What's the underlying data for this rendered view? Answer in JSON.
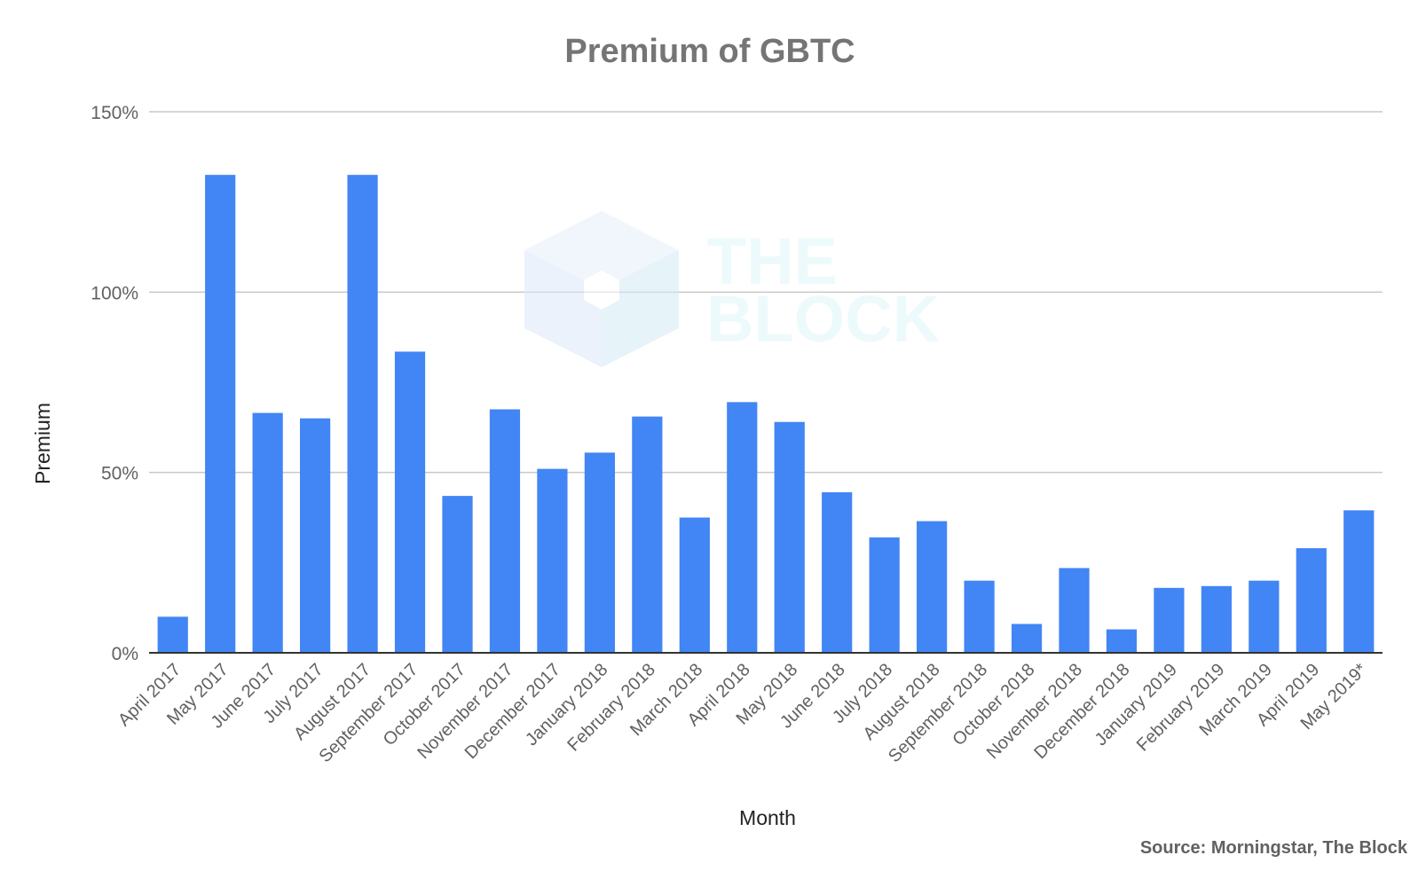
{
  "chart_data": {
    "type": "bar",
    "title": "Premium of GBTC",
    "xlabel": "Month",
    "ylabel": "Premium",
    "ylim": [
      0,
      150
    ],
    "yticks": [
      "0%",
      "50%",
      "100%",
      "150%"
    ],
    "y_unit": "%",
    "grid": true,
    "bar_color": "#4285f4",
    "categories": [
      "April 2017",
      "May 2017",
      "June 2017",
      "July 2017",
      "August 2017",
      "September 2017",
      "October 2017",
      "November 2017",
      "December 2017",
      "January 2018",
      "February 2018",
      "March 2018",
      "April 2018",
      "May 2018",
      "June 2018",
      "July 2018",
      "August 2018",
      "September 2018",
      "October 2018",
      "November 2018",
      "December 2018",
      "January 2019",
      "February 2019",
      "March 2019",
      "April 2019",
      "May 2019*"
    ],
    "values": [
      10,
      132.5,
      66.5,
      65,
      132.5,
      83.5,
      43.5,
      67.5,
      51,
      55.5,
      65.5,
      37.5,
      69.5,
      64,
      44.5,
      32,
      36.5,
      20,
      8,
      23.5,
      6.5,
      18,
      18.5,
      20,
      29,
      39.5
    ],
    "source": "Source: Morningstar, The Block"
  },
  "watermark": {
    "line1": "THE",
    "line2": "BLOCK"
  }
}
